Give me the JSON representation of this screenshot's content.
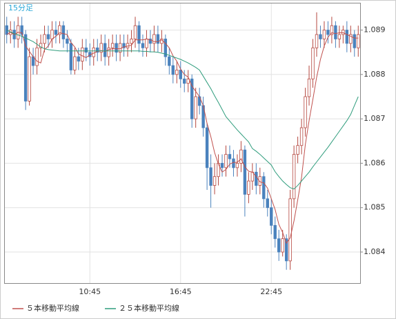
{
  "chart_data": {
    "type": "candlestick",
    "title": "15分足",
    "categories": [
      null,
      null,
      null,
      null,
      null,
      null,
      null,
      null,
      null,
      null,
      null,
      null,
      null,
      null,
      null,
      null,
      null,
      null,
      null,
      null,
      null,
      null,
      "10:45",
      null,
      null,
      null,
      null,
      null,
      null,
      null,
      null,
      null,
      null,
      null,
      null,
      null,
      null,
      null,
      null,
      null,
      null,
      null,
      null,
      null,
      null,
      null,
      "16:45",
      null,
      null,
      null,
      null,
      null,
      null,
      null,
      null,
      null,
      null,
      null,
      null,
      null,
      null,
      null,
      null,
      null,
      null,
      null,
      null,
      null,
      null,
      null,
      "22:45",
      null,
      null,
      null,
      null,
      null,
      null,
      null,
      null,
      null,
      null,
      null,
      null,
      null,
      null,
      null,
      null,
      null,
      null,
      null,
      null,
      null,
      null,
      null
    ],
    "open": [
      1.0891,
      1.0889,
      1.089,
      1.0888,
      1.0891,
      1.0889,
      1.0874,
      1.0884,
      1.0882,
      1.0886,
      1.0887,
      1.0889,
      1.0888,
      1.089,
      1.0889,
      1.0891,
      1.0888,
      1.0887,
      1.0881,
      1.0884,
      1.0883,
      1.0886,
      1.0885,
      1.0884,
      1.0886,
      1.0885,
      1.0887,
      1.0884,
      1.0886,
      1.0887,
      1.0885,
      1.0887,
      1.0886,
      1.0887,
      1.0888,
      1.0891,
      1.0887,
      1.0886,
      1.0888,
      1.0887,
      1.0889,
      1.0887,
      1.0888,
      1.0884,
      1.0882,
      1.088,
      1.0881,
      1.0879,
      1.0878,
      1.0879,
      1.087,
      1.0875,
      1.0873,
      1.0868,
      1.0859,
      1.0855,
      1.0857,
      1.086,
      1.0859,
      1.0862,
      1.0861,
      1.0859,
      1.086,
      1.0863,
      1.0853,
      1.0856,
      1.0858,
      1.0855,
      1.0857,
      1.0852,
      1.085,
      1.0846,
      1.0843,
      1.084,
      1.0843,
      1.0838,
      1.0852,
      1.0862,
      1.0864,
      1.0868,
      1.0875,
      1.0879,
      1.0886,
      1.0889,
      1.0888,
      1.089,
      1.0889,
      1.0891,
      1.0888,
      1.0889,
      1.089,
      1.0887,
      1.0889,
      1.0886
    ],
    "high": [
      1.0893,
      1.0892,
      1.0892,
      1.0893,
      1.0893,
      1.089,
      1.0886,
      1.0886,
      1.0888,
      1.0889,
      1.0891,
      1.0891,
      1.0892,
      1.0892,
      1.0892,
      1.0892,
      1.089,
      1.0888,
      1.0886,
      1.0886,
      1.0888,
      1.0888,
      1.0887,
      1.0888,
      1.0888,
      1.0889,
      1.0889,
      1.0888,
      1.0889,
      1.0889,
      1.0889,
      1.0889,
      1.0889,
      1.089,
      1.0893,
      1.0892,
      1.0889,
      1.089,
      1.089,
      1.0891,
      1.0891,
      1.089,
      1.0889,
      1.0886,
      1.0884,
      1.0883,
      1.0883,
      1.0881,
      1.0881,
      1.088,
      1.0877,
      1.0877,
      1.0875,
      1.0869,
      1.0862,
      1.086,
      1.0862,
      1.0862,
      1.0864,
      1.0864,
      1.0863,
      1.0862,
      1.0865,
      1.0864,
      1.0858,
      1.086,
      1.086,
      1.0859,
      1.0858,
      1.0854,
      1.0852,
      1.0848,
      1.0845,
      1.0845,
      1.0844,
      1.0854,
      1.0864,
      1.0866,
      1.087,
      1.0877,
      1.0882,
      1.0888,
      1.0894,
      1.0891,
      1.0892,
      1.0892,
      1.0893,
      1.0892,
      1.0891,
      1.0891,
      1.0892,
      1.0891,
      1.089,
      1.0891
    ],
    "low": [
      1.0887,
      1.0887,
      1.0886,
      1.0886,
      1.0887,
      1.0872,
      1.0873,
      1.088,
      1.088,
      1.0884,
      1.0885,
      1.0886,
      1.0886,
      1.0887,
      1.0887,
      1.0886,
      1.0885,
      1.088,
      1.088,
      1.0881,
      1.0881,
      1.0883,
      1.0882,
      1.0882,
      1.0883,
      1.0883,
      1.0882,
      1.0882,
      1.0884,
      1.0883,
      1.0883,
      1.0884,
      1.0884,
      1.0885,
      1.0886,
      1.0885,
      1.0884,
      1.0884,
      1.0885,
      1.0885,
      1.0885,
      1.0885,
      1.0882,
      1.088,
      1.0878,
      1.0878,
      1.0877,
      1.0876,
      1.0876,
      1.0868,
      1.0868,
      1.0871,
      1.0866,
      1.0854,
      1.085,
      1.0853,
      1.0855,
      1.0857,
      1.0857,
      1.0859,
      1.0857,
      1.0857,
      1.0858,
      1.0848,
      1.0851,
      1.0854,
      1.0853,
      1.0853,
      1.085,
      1.0848,
      1.0844,
      1.0841,
      1.0838,
      1.0839,
      1.0836,
      1.0836,
      1.085,
      1.086,
      1.0862,
      1.0866,
      1.0873,
      1.0877,
      1.0884,
      1.0886,
      1.0886,
      1.0887,
      1.0887,
      1.0886,
      1.0886,
      1.0887,
      1.0885,
      1.0885,
      1.0884,
      1.0884
    ],
    "close": [
      1.0889,
      1.089,
      1.0888,
      1.0891,
      1.0889,
      1.0874,
      1.0884,
      1.0882,
      1.0886,
      1.0887,
      1.0889,
      1.0888,
      1.089,
      1.0889,
      1.0891,
      1.0888,
      1.0887,
      1.0881,
      1.0884,
      1.0883,
      1.0886,
      1.0885,
      1.0884,
      1.0886,
      1.0885,
      1.0887,
      1.0884,
      1.0886,
      1.0887,
      1.0885,
      1.0887,
      1.0886,
      1.0887,
      1.0888,
      1.0891,
      1.0887,
      1.0886,
      1.0888,
      1.0887,
      1.0889,
      1.0887,
      1.0888,
      1.0884,
      1.0882,
      1.088,
      1.0881,
      1.0879,
      1.0878,
      1.0879,
      1.087,
      1.0875,
      1.0873,
      1.0868,
      1.0859,
      1.0855,
      1.0857,
      1.086,
      1.0859,
      1.0862,
      1.0861,
      1.0859,
      1.086,
      1.0863,
      1.0853,
      1.0856,
      1.0858,
      1.0855,
      1.0857,
      1.0852,
      1.085,
      1.0846,
      1.0843,
      1.084,
      1.0843,
      1.0838,
      1.0852,
      1.0862,
      1.0864,
      1.0868,
      1.0875,
      1.0879,
      1.0886,
      1.0889,
      1.0888,
      1.089,
      1.0889,
      1.0891,
      1.0888,
      1.0889,
      1.089,
      1.0887,
      1.0889,
      1.0886,
      1.0889
    ],
    "up_color": "#b5473f",
    "down_color": "#4a82bd",
    "series": [
      {
        "name": "５本移動平均線",
        "color": "#c0504d",
        "values": [
          1.0889,
          1.08895,
          1.0889,
          1.08895,
          1.08894,
          1.08864,
          1.08852,
          1.0884,
          1.0883,
          1.08826,
          1.08856,
          1.08864,
          1.0888,
          1.08886,
          1.08894,
          1.08892,
          1.0889,
          1.08872,
          1.08862,
          1.08846,
          1.08842,
          1.08838,
          1.08844,
          1.08848,
          1.08852,
          1.08854,
          1.08852,
          1.08856,
          1.08858,
          1.08858,
          1.08858,
          1.08862,
          1.08864,
          1.08866,
          1.08878,
          1.08878,
          1.08878,
          1.0888,
          1.08878,
          1.08874,
          1.08874,
          1.08878,
          1.0887,
          1.0886,
          1.08842,
          1.0883,
          1.08812,
          1.088,
          1.08794,
          1.08774,
          1.08762,
          1.0875,
          1.0873,
          1.0869,
          1.0866,
          1.08624,
          1.08598,
          1.0858,
          1.08586,
          1.08598,
          1.08602,
          1.08602,
          1.0861,
          1.08592,
          1.08582,
          1.0858,
          1.0857,
          1.08558,
          1.08556,
          1.08544,
          1.0852,
          1.08496,
          1.08462,
          1.08444,
          1.0842,
          1.08432,
          1.0847,
          1.08518,
          1.08568,
          1.08642,
          1.08696,
          1.08744,
          1.08794,
          1.08834,
          1.08864,
          1.08884,
          1.08894,
          1.08892,
          1.08894,
          1.08894,
          1.0889,
          1.08886,
          1.08882,
          1.08882
        ]
      },
      {
        "name": "２５本移動平均線",
        "color": "#2e9c7c",
        "values": [
          1.089,
          1.08896,
          1.08892,
          1.08889,
          1.08886,
          1.08882,
          1.08878,
          1.08874,
          1.08868,
          1.08862,
          1.08858,
          1.08856,
          1.08855,
          1.08854,
          1.08853,
          1.08853,
          1.08853,
          1.08853,
          1.08853,
          1.08853,
          1.08853,
          1.08853,
          1.08853,
          1.08853,
          1.08853,
          1.08853,
          1.08853,
          1.08853,
          1.08853,
          1.08853,
          1.08853,
          1.08853,
          1.08853,
          1.08853,
          1.08853,
          1.08853,
          1.08852,
          1.08852,
          1.08851,
          1.08851,
          1.0885,
          1.08848,
          1.08846,
          1.08843,
          1.0884,
          1.08837,
          1.08834,
          1.0883,
          1.08826,
          1.08821,
          1.08816,
          1.0881,
          1.08796,
          1.08782,
          1.08768,
          1.08752,
          1.08737,
          1.08721,
          1.08705,
          1.08695,
          1.08685,
          1.08675,
          1.08666,
          1.08657,
          1.08648,
          1.08633,
          1.08627,
          1.0862,
          1.08612,
          1.08604,
          1.08596,
          1.08581,
          1.0857,
          1.0856,
          1.08552,
          1.08545,
          1.08542,
          1.0855,
          1.0856,
          1.0857,
          1.0858,
          1.08592,
          1.08603,
          1.08614,
          1.08625,
          1.08636,
          1.08648,
          1.0866,
          1.08672,
          1.08684,
          1.08696,
          1.0871,
          1.0873,
          1.0875
        ]
      }
    ],
    "ylim": [
      1.0833,
      1.0896
    ],
    "yticks": [
      1.084,
      1.085,
      1.086,
      1.087,
      1.088,
      1.089
    ],
    "grid": true
  }
}
